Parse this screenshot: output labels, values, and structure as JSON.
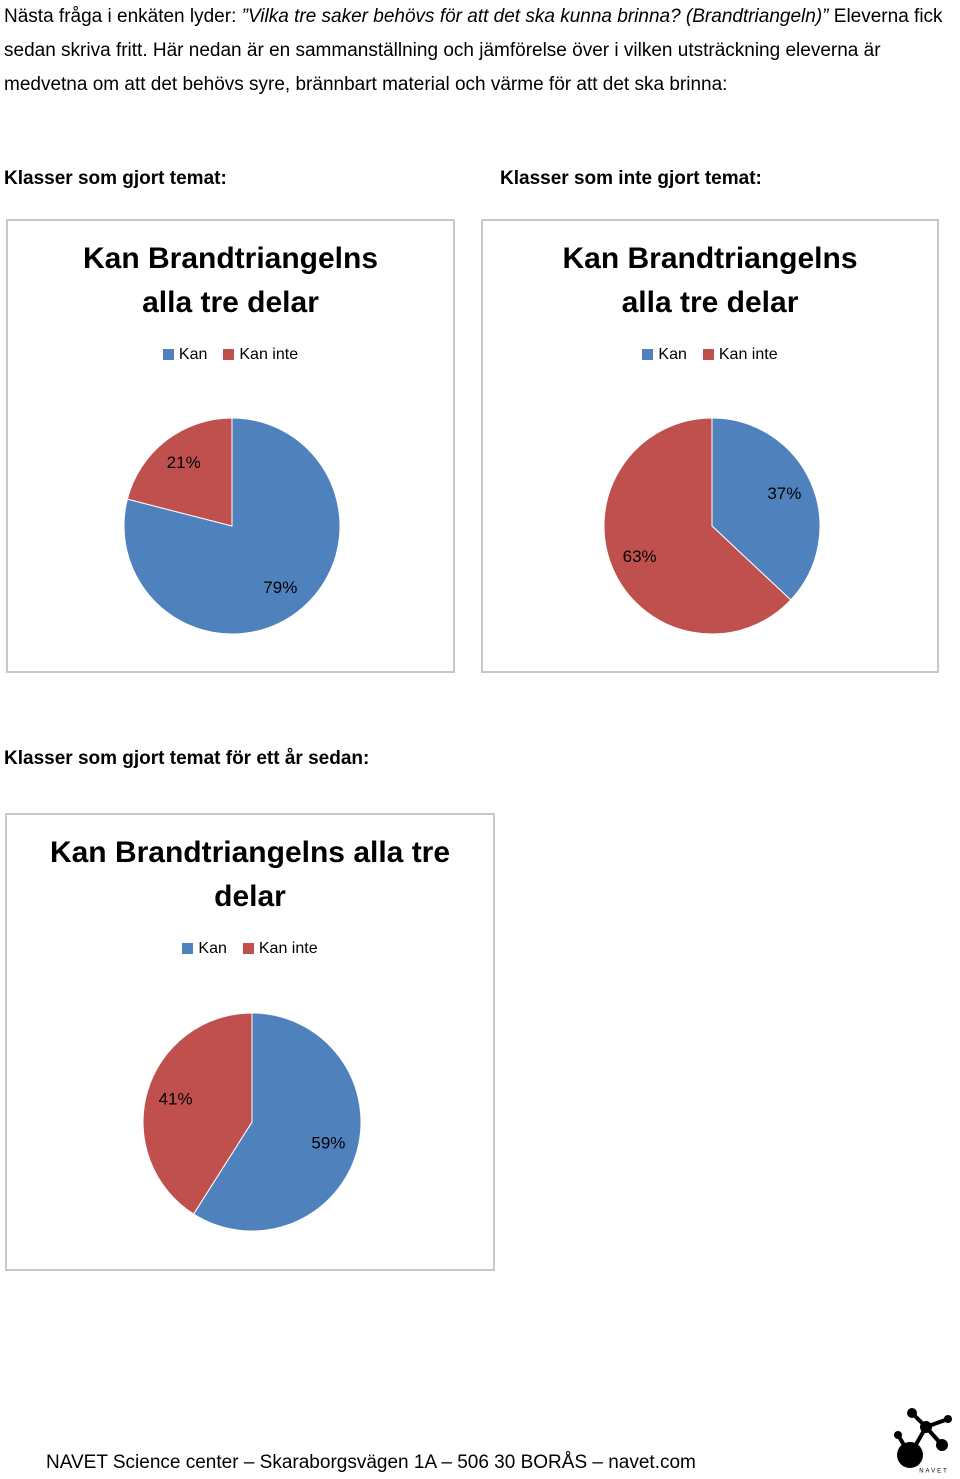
{
  "intro": [
    "Nästa fråga i enkäten lyder: ",
    "”Vilka tre saker behövs för att det ska kunna brinna? (Brandtriangeln)”",
    " Eleverna fick sedan skriva fritt. Här nedan är en sammanställning och jämförelse över i vilken utsträckning eleverna är medvetna om att det behövs syre, brännbart material och värme för att det ska brinna:"
  ],
  "headings": [
    "Klasser som gjort temat:",
    "Klasser som inte gjort temat:",
    "Klasser som gjort temat för ett år sedan:"
  ],
  "chart_data": [
    {
      "type": "pie",
      "title": "Kan Brandtriangelns alla tre delar",
      "categories": [
        "Kan",
        "Kan inte"
      ],
      "values": [
        79,
        21
      ],
      "value_labels": [
        "79%",
        "21%"
      ],
      "colors": [
        "#4f81bd",
        "#c0504d"
      ]
    },
    {
      "type": "pie",
      "title": "Kan Brandtriangelns alla tre delar",
      "categories": [
        "Kan",
        "Kan inte"
      ],
      "values": [
        37,
        63
      ],
      "value_labels": [
        "37%",
        "63%"
      ],
      "colors": [
        "#4f81bd",
        "#c0504d"
      ]
    },
    {
      "type": "pie",
      "title": "Kan Brandtriangelns alla tre delar",
      "categories": [
        "Kan",
        "Kan inte"
      ],
      "values": [
        59,
        41
      ],
      "value_labels": [
        "59%",
        "41%"
      ],
      "colors": [
        "#4f81bd",
        "#c0504d"
      ]
    }
  ],
  "footer": "NAVET Science center – Skaraborgsvägen 1A – 506 30 BORÅS – navet.com",
  "logo_text": "NAVET"
}
